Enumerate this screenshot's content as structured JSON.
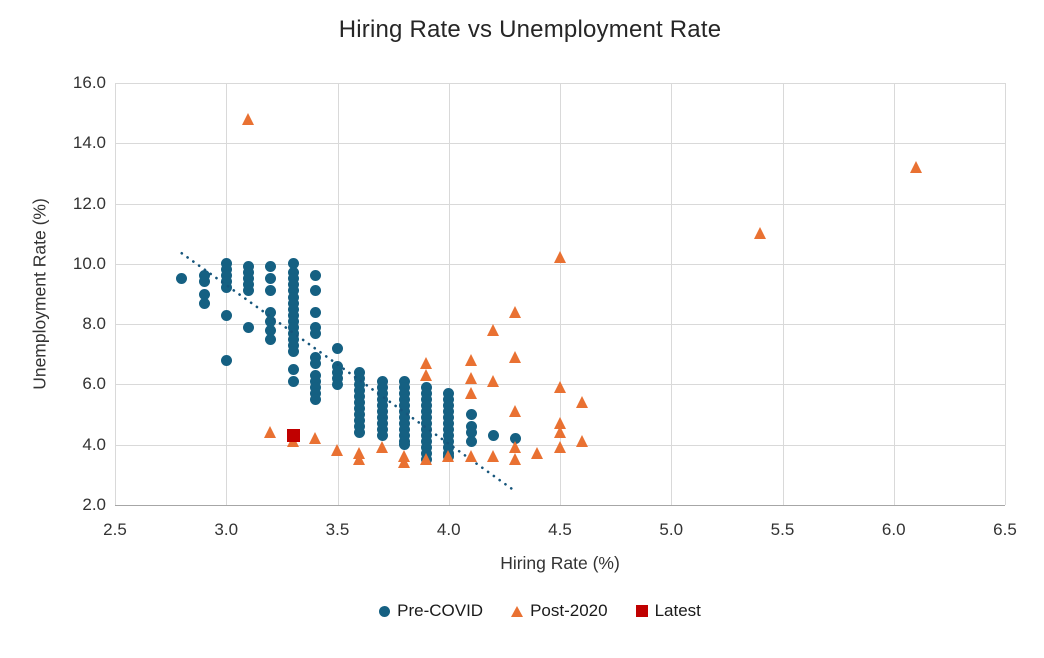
{
  "title": "Hiring Rate vs Unemployment Rate",
  "colors": {
    "pre_covid": "#156082",
    "post_2020": "#E97132",
    "latest": "#C00000",
    "trendline": "#17567C",
    "gridline": "#D9D9D9",
    "axis_line": "#A6A6A6",
    "title_text": "#262626",
    "tick_text": "#333333"
  },
  "chart_data": {
    "type": "scatter",
    "title": "Hiring Rate vs Unemployment Rate",
    "xlabel": "Hiring Rate (%)",
    "ylabel": "Unemployment Rate (%)",
    "xlim": [
      2.5,
      6.5
    ],
    "ylim": [
      2.0,
      16.0
    ],
    "x_ticks": [
      "2.5",
      "3.0",
      "3.5",
      "4.0",
      "4.5",
      "5.0",
      "5.5",
      "6.0",
      "6.5"
    ],
    "y_ticks": [
      "2.0",
      "4.0",
      "6.0",
      "8.0",
      "10.0",
      "12.0",
      "14.0",
      "16.0"
    ],
    "grid": true,
    "legend_position": "bottom",
    "series": [
      {
        "name": "Pre-COVID",
        "marker": "circle",
        "color": "#156082",
        "points": [
          [
            2.8,
            9.5
          ],
          [
            2.9,
            9.6
          ],
          [
            2.9,
            9.4
          ],
          [
            2.9,
            9.0
          ],
          [
            2.9,
            8.7
          ],
          [
            3.0,
            10.0
          ],
          [
            3.0,
            9.8
          ],
          [
            3.0,
            9.6
          ],
          [
            3.0,
            9.4
          ],
          [
            3.0,
            9.2
          ],
          [
            3.0,
            8.3
          ],
          [
            3.0,
            6.8
          ],
          [
            3.1,
            9.9
          ],
          [
            3.1,
            9.7
          ],
          [
            3.1,
            9.5
          ],
          [
            3.1,
            9.3
          ],
          [
            3.1,
            9.1
          ],
          [
            3.1,
            7.9
          ],
          [
            3.2,
            9.9
          ],
          [
            3.2,
            9.5
          ],
          [
            3.2,
            9.1
          ],
          [
            3.2,
            8.4
          ],
          [
            3.2,
            8.1
          ],
          [
            3.2,
            7.8
          ],
          [
            3.2,
            7.5
          ],
          [
            3.3,
            10.0
          ],
          [
            3.3,
            9.7
          ],
          [
            3.3,
            9.5
          ],
          [
            3.3,
            9.3
          ],
          [
            3.3,
            9.1
          ],
          [
            3.3,
            8.9
          ],
          [
            3.3,
            8.7
          ],
          [
            3.3,
            8.5
          ],
          [
            3.3,
            8.3
          ],
          [
            3.3,
            8.1
          ],
          [
            3.3,
            7.9
          ],
          [
            3.3,
            7.7
          ],
          [
            3.3,
            7.5
          ],
          [
            3.3,
            7.3
          ],
          [
            3.3,
            7.1
          ],
          [
            3.3,
            6.5
          ],
          [
            3.3,
            6.1
          ],
          [
            3.4,
            9.6
          ],
          [
            3.4,
            9.1
          ],
          [
            3.4,
            8.4
          ],
          [
            3.4,
            7.9
          ],
          [
            3.4,
            7.7
          ],
          [
            3.4,
            6.9
          ],
          [
            3.4,
            6.7
          ],
          [
            3.4,
            6.3
          ],
          [
            3.4,
            6.1
          ],
          [
            3.4,
            5.9
          ],
          [
            3.4,
            5.7
          ],
          [
            3.4,
            5.5
          ],
          [
            3.5,
            7.2
          ],
          [
            3.5,
            6.6
          ],
          [
            3.5,
            6.4
          ],
          [
            3.5,
            6.2
          ],
          [
            3.5,
            6.0
          ],
          [
            3.6,
            6.4
          ],
          [
            3.6,
            6.2
          ],
          [
            3.6,
            6.0
          ],
          [
            3.6,
            5.8
          ],
          [
            3.6,
            5.6
          ],
          [
            3.6,
            5.4
          ],
          [
            3.6,
            5.2
          ],
          [
            3.6,
            5.0
          ],
          [
            3.6,
            4.8
          ],
          [
            3.6,
            4.6
          ],
          [
            3.6,
            4.4
          ],
          [
            3.7,
            6.1
          ],
          [
            3.7,
            5.9
          ],
          [
            3.7,
            5.7
          ],
          [
            3.7,
            5.5
          ],
          [
            3.7,
            5.3
          ],
          [
            3.7,
            5.1
          ],
          [
            3.7,
            4.9
          ],
          [
            3.7,
            4.7
          ],
          [
            3.7,
            4.5
          ],
          [
            3.7,
            4.3
          ],
          [
            3.8,
            6.1
          ],
          [
            3.8,
            5.9
          ],
          [
            3.8,
            5.7
          ],
          [
            3.8,
            5.5
          ],
          [
            3.8,
            5.3
          ],
          [
            3.8,
            5.1
          ],
          [
            3.8,
            4.9
          ],
          [
            3.8,
            4.7
          ],
          [
            3.8,
            4.5
          ],
          [
            3.8,
            4.3
          ],
          [
            3.8,
            4.1
          ],
          [
            3.8,
            4.0
          ],
          [
            3.9,
            5.9
          ],
          [
            3.9,
            5.7
          ],
          [
            3.9,
            5.5
          ],
          [
            3.9,
            5.3
          ],
          [
            3.9,
            5.1
          ],
          [
            3.9,
            4.9
          ],
          [
            3.9,
            4.7
          ],
          [
            3.9,
            4.5
          ],
          [
            3.9,
            4.3
          ],
          [
            3.9,
            4.1
          ],
          [
            3.9,
            3.9
          ],
          [
            3.9,
            3.7
          ],
          [
            3.9,
            3.5
          ],
          [
            4.0,
            5.7
          ],
          [
            4.0,
            5.5
          ],
          [
            4.0,
            5.3
          ],
          [
            4.0,
            5.1
          ],
          [
            4.0,
            4.9
          ],
          [
            4.0,
            4.7
          ],
          [
            4.0,
            4.5
          ],
          [
            4.0,
            4.3
          ],
          [
            4.0,
            4.1
          ],
          [
            4.0,
            3.9
          ],
          [
            4.0,
            3.7
          ],
          [
            4.0,
            3.6
          ],
          [
            4.1,
            5.0
          ],
          [
            4.1,
            4.6
          ],
          [
            4.1,
            4.4
          ],
          [
            4.1,
            4.1
          ],
          [
            4.2,
            4.3
          ],
          [
            4.3,
            4.2
          ]
        ]
      },
      {
        "name": "Post-2020",
        "marker": "triangle",
        "color": "#E97132",
        "points": [
          [
            3.1,
            14.8
          ],
          [
            6.1,
            13.2
          ],
          [
            5.4,
            11.0
          ],
          [
            4.5,
            10.2
          ],
          [
            4.3,
            8.4
          ],
          [
            4.2,
            7.8
          ],
          [
            4.3,
            6.9
          ],
          [
            4.1,
            6.8
          ],
          [
            3.9,
            6.7
          ],
          [
            3.9,
            6.3
          ],
          [
            4.1,
            6.2
          ],
          [
            4.2,
            6.1
          ],
          [
            4.5,
            5.9
          ],
          [
            4.1,
            5.7
          ],
          [
            4.6,
            5.4
          ],
          [
            4.3,
            5.1
          ],
          [
            4.5,
            4.7
          ],
          [
            4.5,
            4.4
          ],
          [
            3.2,
            4.4
          ],
          [
            3.4,
            4.2
          ],
          [
            4.6,
            4.1
          ],
          [
            3.3,
            4.1
          ],
          [
            4.5,
            3.9
          ],
          [
            4.3,
            3.9
          ],
          [
            3.7,
            3.9
          ],
          [
            3.5,
            3.8
          ],
          [
            4.4,
            3.7
          ],
          [
            3.6,
            3.7
          ],
          [
            3.8,
            3.6
          ],
          [
            4.2,
            3.6
          ],
          [
            4.1,
            3.6
          ],
          [
            4.0,
            3.6
          ],
          [
            3.9,
            3.5
          ],
          [
            4.3,
            3.5
          ],
          [
            3.6,
            3.5
          ],
          [
            3.8,
            3.4
          ]
        ]
      },
      {
        "name": "Latest",
        "marker": "square",
        "color": "#C00000",
        "points": [
          [
            3.3,
            4.3
          ]
        ]
      }
    ],
    "trendline": {
      "series": "Pre-COVID",
      "style": "dotted",
      "color": "#17567C",
      "from": [
        2.8,
        10.35
      ],
      "to": [
        4.3,
        2.45
      ]
    }
  }
}
